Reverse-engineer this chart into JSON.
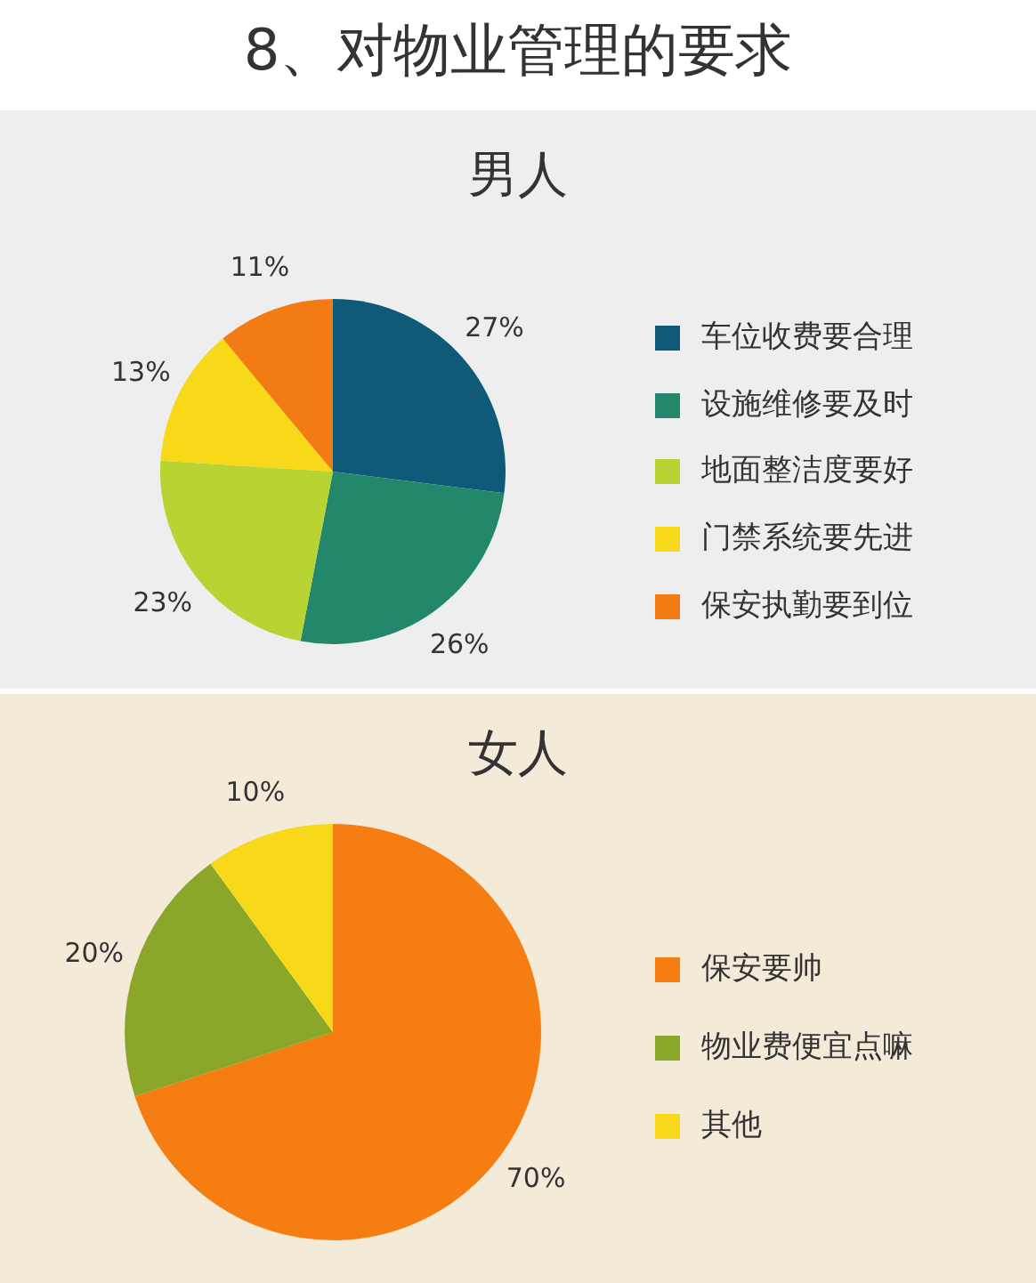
{
  "chart_data": [
    {
      "type": "pie",
      "title": "8、对物业管理的要求",
      "subtitle": "男人",
      "categories": [
        "车位收费要合理",
        "设施维修要及时",
        "地面整洁度要好",
        "门禁系统要先进",
        "保安执勤要到位"
      ],
      "values": [
        27,
        26,
        23,
        13,
        11
      ],
      "value_labels": [
        "27%",
        "26%",
        "23%",
        "13%",
        "11%"
      ],
      "colors": [
        "#0e5a78",
        "#23876c",
        "#b8d433",
        "#f8d91a",
        "#f27b14"
      ],
      "legend": "right"
    },
    {
      "type": "pie",
      "title": "女人",
      "categories": [
        "保安要帅",
        "物业费便宜点嘛",
        "其他"
      ],
      "values": [
        70,
        20,
        10
      ],
      "value_labels": [
        "70%",
        "20%",
        "10%"
      ],
      "colors": [
        "#f57d12",
        "#8ba72a",
        "#f7d91a"
      ],
      "legend": "right"
    }
  ]
}
